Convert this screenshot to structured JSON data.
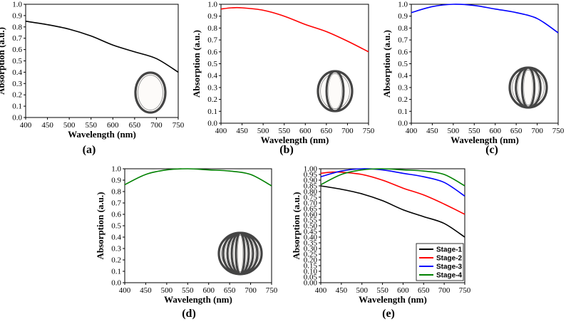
{
  "chart_data": [
    {
      "type": "line",
      "panel_label": "(a)",
      "xlabel": "Wavelength (nm)",
      "ylabel": "Absorption (a.u.)",
      "xlim": [
        400,
        750
      ],
      "ylim": [
        0.0,
        1.0
      ],
      "xticks": [
        400,
        450,
        500,
        550,
        600,
        650,
        700,
        750
      ],
      "yticks": [
        0.0,
        0.1,
        0.2,
        0.3,
        0.4,
        0.5,
        0.6,
        0.7,
        0.8,
        0.9,
        1.0
      ],
      "ytick_labels": [
        "0.0",
        "0.1",
        "0.2",
        "0.3",
        "0.4",
        "0.5",
        "0.6",
        "0.7",
        "0.8",
        "0.9",
        "1.0"
      ],
      "inset_rings": 1,
      "series": [
        {
          "name": "Stage-1",
          "color": "#000000",
          "x": [
            400,
            450,
            500,
            550,
            600,
            650,
            700,
            750
          ],
          "y": [
            0.85,
            0.82,
            0.78,
            0.72,
            0.64,
            0.58,
            0.52,
            0.4
          ]
        }
      ]
    },
    {
      "type": "line",
      "panel_label": "(b)",
      "xlabel": "Wavelength (nm)",
      "ylabel": "Absorption (a.u.)",
      "xlim": [
        400,
        750
      ],
      "ylim": [
        0.0,
        1.0
      ],
      "xticks": [
        400,
        450,
        500,
        550,
        600,
        650,
        700,
        750
      ],
      "yticks": [
        0.0,
        0.1,
        0.2,
        0.3,
        0.4,
        0.5,
        0.6,
        0.7,
        0.8,
        0.9,
        1.0
      ],
      "ytick_labels": [
        "0.0",
        "0.1",
        "0.2",
        "0.3",
        "0.4",
        "0.5",
        "0.6",
        "0.7",
        "0.8",
        "0.9",
        "1.0"
      ],
      "inset_rings": 2,
      "series": [
        {
          "name": "Stage-2",
          "color": "#ff0000",
          "x": [
            400,
            425,
            450,
            500,
            550,
            600,
            650,
            700,
            750
          ],
          "y": [
            0.96,
            0.97,
            0.97,
            0.95,
            0.9,
            0.83,
            0.77,
            0.69,
            0.6
          ]
        }
      ]
    },
    {
      "type": "line",
      "panel_label": "(c)",
      "xlabel": "Wavelength (nm)",
      "ylabel": "Absorption (a.u.)",
      "xlim": [
        400,
        750
      ],
      "ylim": [
        0.0,
        1.0
      ],
      "xticks": [
        400,
        450,
        500,
        550,
        600,
        650,
        700,
        750
      ],
      "yticks": [
        0.0,
        0.1,
        0.2,
        0.3,
        0.4,
        0.5,
        0.6,
        0.7,
        0.8,
        0.9,
        1.0
      ],
      "ytick_labels": [
        "0.0",
        "0.1",
        "0.2",
        "0.3",
        "0.4",
        "0.5",
        "0.6",
        "0.7",
        "0.8",
        "0.9",
        "1.0"
      ],
      "inset_rings": 3,
      "series": [
        {
          "name": "Stage-3",
          "color": "#0000ff",
          "x": [
            400,
            450,
            500,
            550,
            600,
            650,
            700,
            750
          ],
          "y": [
            0.93,
            0.98,
            1.0,
            0.99,
            0.96,
            0.93,
            0.88,
            0.76
          ]
        }
      ]
    },
    {
      "type": "line",
      "panel_label": "(d)",
      "xlabel": "Wavelength (nm)",
      "ylabel": "Absorption (a.u.)",
      "xlim": [
        400,
        750
      ],
      "ylim": [
        0.0,
        1.0
      ],
      "xticks": [
        400,
        450,
        500,
        550,
        600,
        650,
        700,
        750
      ],
      "yticks": [
        0.0,
        0.1,
        0.2,
        0.3,
        0.4,
        0.5,
        0.6,
        0.7,
        0.8,
        0.9,
        1.0
      ],
      "ytick_labels": [
        "0.0",
        "0.1",
        "0.2",
        "0.3",
        "0.4",
        "0.5",
        "0.6",
        "0.7",
        "0.8",
        "0.9",
        "1.0"
      ],
      "inset_rings": 5,
      "series": [
        {
          "name": "Stage-4",
          "color": "#008000",
          "x": [
            400,
            450,
            500,
            550,
            600,
            650,
            700,
            750
          ],
          "y": [
            0.86,
            0.95,
            0.99,
            1.0,
            0.99,
            0.98,
            0.95,
            0.85
          ]
        }
      ]
    },
    {
      "type": "line",
      "panel_label": "(e)",
      "xlabel": "Wavelength (nm)",
      "ylabel": "Absorption (a.u.)",
      "xlim": [
        400,
        750
      ],
      "ylim": [
        0.0,
        1.0
      ],
      "xticks": [
        400,
        450,
        500,
        550,
        600,
        650,
        700,
        750
      ],
      "yticks": [
        0.0,
        0.05,
        0.1,
        0.15,
        0.2,
        0.25,
        0.3,
        0.35,
        0.4,
        0.45,
        0.5,
        0.55,
        0.6,
        0.65,
        0.7,
        0.75,
        0.8,
        0.85,
        0.9,
        0.95,
        1.0
      ],
      "ytick_labels": [
        "0.00",
        "0.05",
        "0.10",
        "0.15",
        "0.20",
        "0.25",
        "0.30",
        "0.35",
        "0.40",
        "0.45",
        "0.50",
        "0.55",
        "0.60",
        "0.65",
        "0.70",
        "0.75",
        "0.80",
        "0.85",
        "0.90",
        "0.95",
        "1.00"
      ],
      "legend_position": "bottom-right",
      "series": [
        {
          "name": "Stage-1",
          "color": "#000000",
          "x": [
            400,
            450,
            500,
            550,
            600,
            650,
            700,
            750
          ],
          "y": [
            0.85,
            0.82,
            0.78,
            0.72,
            0.64,
            0.58,
            0.52,
            0.4
          ]
        },
        {
          "name": "Stage-2",
          "color": "#ff0000",
          "x": [
            400,
            425,
            450,
            500,
            550,
            600,
            650,
            700,
            750
          ],
          "y": [
            0.96,
            0.97,
            0.97,
            0.95,
            0.9,
            0.83,
            0.77,
            0.69,
            0.6
          ]
        },
        {
          "name": "Stage-3",
          "color": "#0000ff",
          "x": [
            400,
            450,
            500,
            550,
            600,
            650,
            700,
            750
          ],
          "y": [
            0.93,
            0.98,
            1.0,
            0.99,
            0.96,
            0.93,
            0.88,
            0.76
          ]
        },
        {
          "name": "Stage-4",
          "color": "#008000",
          "x": [
            400,
            450,
            500,
            550,
            600,
            650,
            700,
            750
          ],
          "y": [
            0.86,
            0.95,
            0.99,
            1.0,
            0.99,
            0.98,
            0.95,
            0.85
          ]
        }
      ]
    }
  ]
}
